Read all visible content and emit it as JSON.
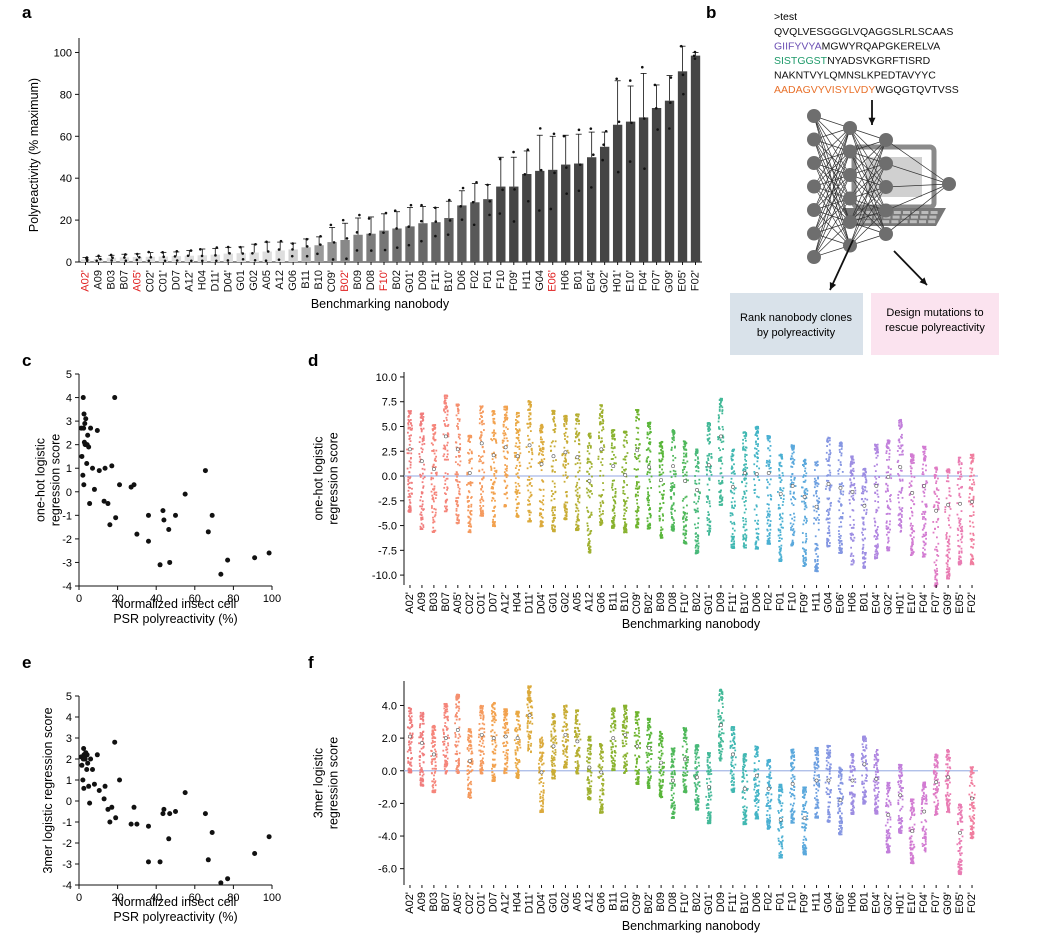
{
  "panels": {
    "a": {
      "label": "a",
      "chart_data": {
        "type": "bar",
        "ylabel": "Polyreactivity (% maximum)",
        "xlabel": "Benchmarking nanobody",
        "ylim": [
          0,
          105
        ],
        "yticks": [
          "0",
          "20",
          "40",
          "60",
          "80",
          "100"
        ],
        "categories": [
          "A02'",
          "A09",
          "B03",
          "B07",
          "A05'",
          "C02'",
          "C01'",
          "D07",
          "A12'",
          "H04",
          "D11'",
          "D04'",
          "G01",
          "G02",
          "A05",
          "A12",
          "G06",
          "B11",
          "B10",
          "C09'",
          "B02'",
          "B09",
          "D08",
          "F10'",
          "B02",
          "G01'",
          "D09",
          "F11'",
          "B10'",
          "D06",
          "F02",
          "F01",
          "F10",
          "F09'",
          "H11",
          "G04",
          "E06'",
          "H06",
          "B01",
          "E04'",
          "G02'",
          "H01'",
          "E10'",
          "F04'",
          "F07'",
          "G09'",
          "E05'",
          "F02'"
        ],
        "red_categories": [
          "A02'",
          "A05'",
          "B02'",
          "F10'",
          "E06'"
        ],
        "values": [
          1.2,
          1.5,
          2,
          2.2,
          2.4,
          2.5,
          2.6,
          2.8,
          3,
          3.2,
          3.5,
          4,
          4.2,
          4.5,
          5,
          5.5,
          6,
          7,
          8,
          9.5,
          10.5,
          13,
          13.5,
          15,
          16,
          17,
          18.5,
          19,
          21,
          27,
          28.5,
          30,
          36,
          36,
          42,
          43.5,
          44,
          46.5,
          47,
          50,
          55,
          65.5,
          67,
          69,
          73.5,
          77,
          91,
          98.5
        ],
        "errors": [
          1,
          1.2,
          1.2,
          1.5,
          1.5,
          2,
          2,
          2,
          2.5,
          3,
          3,
          3,
          3,
          4,
          4.5,
          4,
          3,
          4,
          4,
          7,
          8,
          8,
          8,
          8,
          8,
          9,
          8,
          7,
          8,
          7,
          9,
          7,
          14,
          14,
          11,
          17,
          16,
          14,
          14,
          12,
          7,
          21,
          17,
          21,
          11,
          12,
          12,
          1.5
        ],
        "bar_colors": [
          "#dedede",
          "#dedede",
          "#dedede",
          "#dedede",
          "#dedede",
          "#dedede",
          "#dedede",
          "#dedede",
          "#dedede",
          "#dedede",
          "#dedede",
          "#dedede",
          "#dedede",
          "#dedede",
          "#dedede",
          "#dedede",
          "#d0d0d0",
          "#b0b0b0",
          "#9a9a9a",
          "#909090",
          "#888888",
          "#828282",
          "#7c7c7c",
          "#767676",
          "#707070",
          "#6c6c6c",
          "#686868",
          "#646464",
          "#606060",
          "#5c5c5c",
          "#585858",
          "#545454",
          "#484848",
          "#454545",
          "#454545",
          "#454545",
          "#454545",
          "#454545",
          "#454545",
          "#454545",
          "#454545",
          "#454545",
          "#454545",
          "#454545",
          "#454545",
          "#454545",
          "#454545",
          "#454545"
        ]
      }
    },
    "b": {
      "label": "b",
      "seq_header": ">test",
      "seq_lines": [
        [
          {
            "t": "QVQLVESGGGLVQAGGSLRLSCAAS",
            "c": "#111111"
          }
        ],
        [
          {
            "t": "GIIFYVYA",
            "c": "#6b4fb3"
          },
          {
            "t": "MGWYRQAPGKERELVA",
            "c": "#111111"
          }
        ],
        [
          {
            "t": "SISTGGST",
            "c": "#1e9a6a"
          },
          {
            "t": "NYADSVKGRFTISRD",
            "c": "#111111"
          }
        ],
        [
          {
            "t": "NAKNTVYLQMNSLKPEDTAVYYC",
            "c": "#111111"
          }
        ],
        [
          {
            "t": "AADAGVYVISYLVDY",
            "c": "#e8702a"
          },
          {
            "t": "WGQGTQVTVSS",
            "c": "#111111"
          }
        ]
      ],
      "box_left": [
        "Rank nanobody clones",
        "by polyreactivity"
      ],
      "box_right": [
        "Design mutations to",
        "rescue polyreactivity"
      ],
      "box_left_color": "#d9e2ea",
      "box_right_color": "#fbe3ef"
    },
    "c": {
      "label": "c",
      "chart_data": {
        "type": "scatter",
        "xlabel_lines": [
          "Normalized insect cell",
          "PSR polyreactivity (%)"
        ],
        "ylabel_lines": [
          "one-hot logistic",
          "regression score"
        ],
        "xlim": [
          0,
          100
        ],
        "ylim": [
          -4,
          5
        ],
        "xticks": [
          "0",
          "20",
          "40",
          "60",
          "80",
          "100"
        ],
        "yticks": [
          "5",
          "4",
          "3",
          "2",
          "1",
          "0",
          "-1",
          "-2",
          "-3",
          "-4"
        ],
        "x": [
          1.2,
          1.5,
          2,
          2.2,
          2.4,
          2.5,
          2.6,
          2.8,
          3,
          3.2,
          3.5,
          4,
          4.2,
          4.5,
          5,
          5.5,
          6,
          7,
          8,
          9.5,
          10.5,
          13,
          13.5,
          15,
          16,
          17,
          18.5,
          19,
          21,
          27,
          28.5,
          30,
          36,
          36,
          42,
          43.5,
          44,
          46.5,
          47,
          50,
          55,
          65.5,
          67,
          69,
          73.5,
          77,
          91,
          98.5
        ],
        "y": [
          2.7,
          1.5,
          0.7,
          4.0,
          2.7,
          0.3,
          3.3,
          2.1,
          2.9,
          2.0,
          3.1,
          1.2,
          2.0,
          2.4,
          1.9,
          -0.5,
          2.7,
          1.0,
          0.1,
          2.6,
          0.9,
          -0.4,
          1.0,
          -0.5,
          -1.4,
          1.1,
          4.0,
          -1.1,
          0.3,
          0.2,
          0.3,
          -1.8,
          -1.0,
          -2.1,
          -3.1,
          -0.8,
          -1.2,
          -1.6,
          -3.0,
          -1.0,
          -0.1,
          0.9,
          -1.7,
          -1.0,
          -3.5,
          -2.9,
          -2.8,
          -2.6
        ]
      }
    },
    "d": {
      "label": "d",
      "chart_data": {
        "type": "strip",
        "ylabel_lines": [
          "one-hot logistic",
          "regression score"
        ],
        "xlabel": "Benchmarking nanobody",
        "ylim": [
          -11,
          10.5
        ],
        "yticks": [
          "10.0",
          "7.5",
          "5.0",
          "2.5",
          "0.0",
          "-2.5",
          "-5.0",
          "-7.5",
          "-10.0"
        ],
        "ytick_values": [
          10,
          7.5,
          5,
          2.5,
          0,
          -2.5,
          -5,
          -7.5,
          -10
        ],
        "categories": [
          "A02'",
          "A09",
          "B03",
          "B07",
          "A05'",
          "C02'",
          "C01'",
          "D07",
          "A12'",
          "H04",
          "D11'",
          "D04'",
          "G01",
          "G02",
          "A05",
          "A12",
          "G06",
          "B11",
          "B10",
          "C09'",
          "B02'",
          "B09",
          "D08",
          "F10'",
          "B02",
          "G01'",
          "D09",
          "F11'",
          "B10'",
          "D06",
          "F02",
          "F01",
          "F10",
          "F09'",
          "H11",
          "G04",
          "E06'",
          "H06",
          "B01",
          "E04'",
          "G02'",
          "H01'",
          "E10'",
          "F04'",
          "F07'",
          "G09'",
          "E05'",
          "F02'"
        ],
        "medians": [
          2.7,
          1.5,
          0.7,
          4.0,
          2.7,
          0.3,
          3.3,
          2.1,
          2.9,
          2.0,
          3.1,
          1.2,
          2.0,
          2.4,
          1.9,
          -0.5,
          2.7,
          1.0,
          0.1,
          2.6,
          0.9,
          -0.4,
          1.0,
          -0.5,
          -1.4,
          1.1,
          4.0,
          -1.1,
          0.3,
          0.2,
          0.3,
          -1.8,
          -1.0,
          -2.1,
          -3.1,
          -0.8,
          -1.2,
          -1.6,
          -3.0,
          -1.0,
          -0.1,
          0.9,
          -1.7,
          -1.0,
          -3.5,
          -2.9,
          -2.8,
          -2.6
        ],
        "spread_upper": 4.2,
        "spread_lower": 6.8,
        "baseline": 0
      }
    },
    "e": {
      "label": "e",
      "chart_data": {
        "type": "scatter",
        "xlabel_lines": [
          "Normalized insect cell",
          "PSR polyreactivity (%)"
        ],
        "ylabel_lines": [
          "3mer logistic regression score"
        ],
        "xlim": [
          0,
          100
        ],
        "ylim": [
          -4,
          5
        ],
        "xticks": [
          "0",
          "20",
          "40",
          "60",
          "80",
          "100"
        ],
        "yticks": [
          "5",
          "4",
          "3",
          "2",
          "1",
          "0",
          "-1",
          "-2",
          "-3",
          "-4"
        ],
        "x": [
          1.2,
          1.5,
          2,
          2.2,
          2.4,
          2.5,
          2.6,
          2.8,
          3,
          3.2,
          3.5,
          4,
          4.2,
          4.5,
          5,
          5.5,
          6,
          7,
          8,
          9.5,
          10.5,
          13,
          13.5,
          15,
          16,
          17,
          18.5,
          19,
          21,
          27,
          28.5,
          30,
          36,
          36,
          42,
          43.5,
          44,
          46.5,
          47,
          50,
          55,
          65.5,
          67,
          69,
          73.5,
          77,
          91,
          98.5
        ],
        "y": [
          2.1,
          1.7,
          1.0,
          2.0,
          2.5,
          0.6,
          2.2,
          2.0,
          2.1,
          2.0,
          2.3,
          1.5,
          2.2,
          1.8,
          0.7,
          -0.1,
          2.0,
          1.5,
          0.8,
          2.2,
          0.5,
          0.1,
          0.7,
          -0.4,
          -1.0,
          -0.3,
          2.8,
          -0.8,
          1.0,
          -1.1,
          -0.3,
          -1.1,
          -1.2,
          -2.9,
          -2.9,
          -0.6,
          -0.4,
          -1.8,
          -0.6,
          -0.5,
          0.4,
          -0.6,
          -2.8,
          -1.5,
          -3.9,
          -3.7,
          -2.5,
          -1.7
        ]
      }
    },
    "f": {
      "label": "f",
      "chart_data": {
        "type": "strip",
        "ylabel_lines": [
          "3mer logistic",
          "regression score"
        ],
        "xlabel": "Benchmarking nanobody",
        "ylim": [
          -7,
          5.5
        ],
        "yticks": [
          "4.0",
          "2.0",
          "0.0",
          "-2.0",
          "-4.0",
          "-6.0"
        ],
        "ytick_values": [
          4,
          2,
          0,
          -2,
          -4,
          -6
        ],
        "categories": [
          "A02'",
          "A09",
          "B03",
          "B07",
          "A05'",
          "C02'",
          "C01'",
          "D07",
          "A12'",
          "H04",
          "D11'",
          "D04'",
          "G01",
          "G02",
          "A05",
          "A12",
          "G06",
          "B11",
          "B10",
          "C09'",
          "B02'",
          "B09",
          "D08",
          "F10'",
          "B02",
          "G01'",
          "D09",
          "F11'",
          "B10'",
          "D06",
          "F02",
          "F01",
          "F10",
          "F09'",
          "H11",
          "G04",
          "E06'",
          "H06",
          "B01",
          "E04'",
          "G02'",
          "H01'",
          "E10'",
          "F04'",
          "F07'",
          "G09'",
          "E05'",
          "F02'"
        ],
        "medians": [
          2.1,
          1.7,
          1.0,
          2.0,
          2.5,
          0.6,
          2.2,
          2.0,
          2.1,
          2.0,
          3.4,
          -0.1,
          1.5,
          2.2,
          1.8,
          0.2,
          -0.1,
          2.0,
          2.2,
          1.5,
          1.4,
          0.5,
          -0.6,
          0.7,
          -0.4,
          -1.0,
          2.8,
          1.0,
          -1.1,
          -0.3,
          -1.1,
          -3.0,
          -0.8,
          -2.9,
          -0.6,
          -0.6,
          -1.8,
          -0.6,
          0.4,
          -0.5,
          -2.7,
          -1.5,
          -3.7,
          -2.5,
          -0.7,
          -0.4,
          -3.8,
          -1.7
        ],
        "spread_upper": 1.9,
        "spread_lower": 2.3,
        "baseline": 0
      }
    }
  },
  "palette": [
    "#f07c7c",
    "#f5857a",
    "#f58f6f",
    "#f59a5e",
    "#f2a24f",
    "#e9a843",
    "#dcaa3c",
    "#c9ac35",
    "#b5ae30",
    "#9fb02f",
    "#88b22f",
    "#6fb42f",
    "#5ab63a",
    "#4fb85a",
    "#48b97a",
    "#43b998",
    "#42b8b2",
    "#44b5c6",
    "#4bb0d3",
    "#5aa8dc",
    "#6d9fe0",
    "#8596e2",
    "#9c8de2",
    "#b086e0",
    "#c27fdb",
    "#d27bd2",
    "#df7bc4",
    "#e97cb3",
    "#f07e9f"
  ],
  "baseline_color": "#a6b8e6"
}
